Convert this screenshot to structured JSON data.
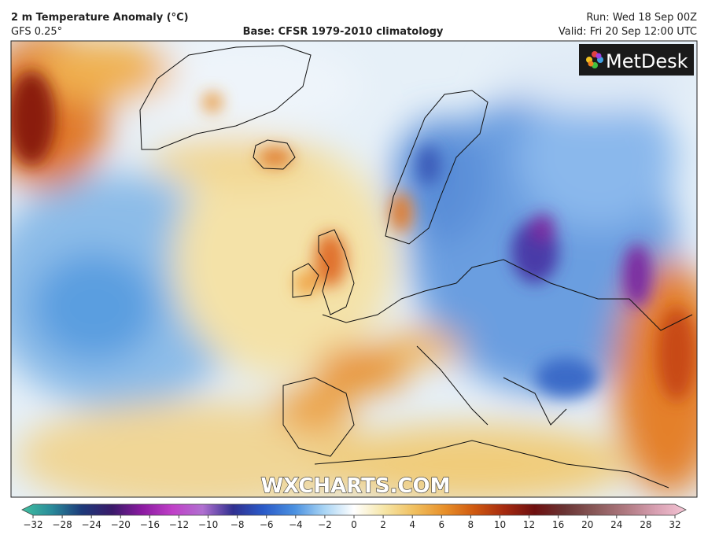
{
  "header": {
    "title": "2 m Temperature Anomaly (°C)",
    "model": "GFS 0.25°",
    "base": "Base: CFSR 1979-2010 climatology",
    "run": "Run: Wed 18 Sep 00Z",
    "valid": "Valid: Fri 20 Sep 12:00 UTC"
  },
  "logo": "MetDesk",
  "watermark": "WXCHARTS.COM",
  "colorbar": {
    "ticks": [
      {
        "value": -32,
        "label": "−32"
      },
      {
        "value": -28,
        "label": "−28"
      },
      {
        "value": -24,
        "label": "−24"
      },
      {
        "value": -20,
        "label": "−20"
      },
      {
        "value": -16,
        "label": "−16"
      },
      {
        "value": -12,
        "label": "−12"
      },
      {
        "value": -10,
        "label": "−10"
      },
      {
        "value": -8,
        "label": "−8"
      },
      {
        "value": -6,
        "label": "−6"
      },
      {
        "value": -4,
        "label": "−4"
      },
      {
        "value": -2,
        "label": "−2"
      },
      0,
      2,
      4,
      6,
      8,
      10,
      12,
      16,
      20,
      24,
      28,
      32
    ]
  }
}
